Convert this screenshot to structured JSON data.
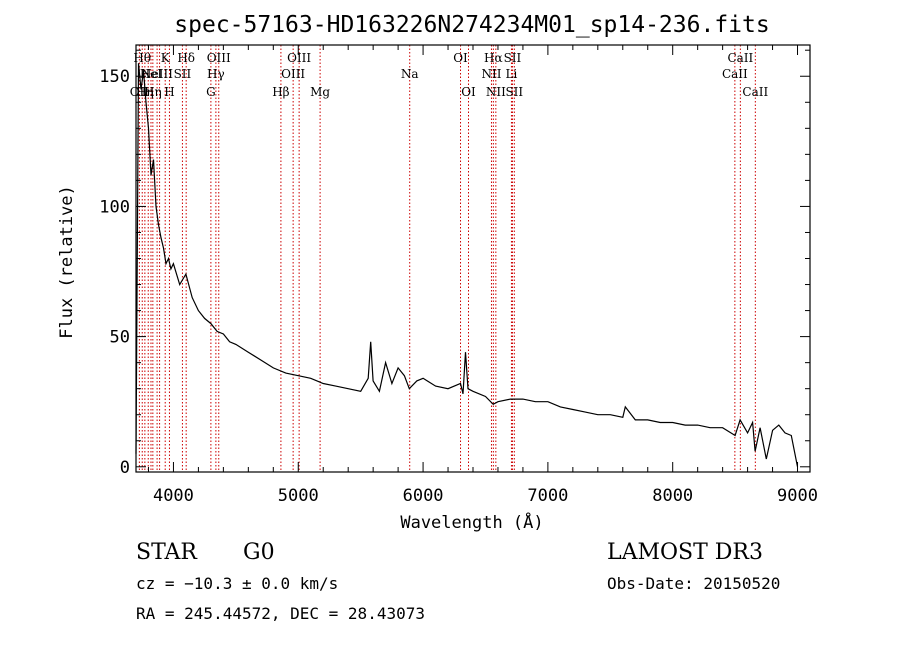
{
  "chart_data": {
    "type": "line",
    "title": "spec-57163-HD163226N274234M01_sp14-236.fits",
    "xlabel": "Wavelength (Å)",
    "ylabel": "Flux (relative)",
    "xlim": [
      3700,
      9100
    ],
    "ylim": [
      -2,
      162
    ],
    "x_ticks": [
      4000,
      5000,
      6000,
      7000,
      8000,
      9000
    ],
    "y_ticks": [
      0,
      50,
      100,
      150
    ],
    "line_color": "#000000",
    "marker_color": "#cc0000",
    "series": [
      {
        "name": "flux",
        "x": [
          3700,
          3720,
          3740,
          3760,
          3780,
          3800,
          3820,
          3840,
          3860,
          3880,
          3900,
          3920,
          3940,
          3960,
          3980,
          4000,
          4050,
          4100,
          4150,
          4200,
          4250,
          4300,
          4350,
          4400,
          4450,
          4500,
          4600,
          4700,
          4800,
          4900,
          5000,
          5100,
          5200,
          5300,
          5400,
          5500,
          5560,
          5580,
          5600,
          5650,
          5700,
          5750,
          5800,
          5850,
          5890,
          5950,
          6000,
          6100,
          6200,
          6300,
          6320,
          6340,
          6360,
          6400,
          6500,
          6562,
          6600,
          6700,
          6800,
          6900,
          7000,
          7100,
          7200,
          7300,
          7400,
          7500,
          7600,
          7620,
          7700,
          7800,
          7900,
          8000,
          8100,
          8200,
          8300,
          8400,
          8500,
          8540,
          8600,
          8640,
          8660,
          8700,
          8750,
          8800,
          8850,
          8900,
          8950,
          9000
        ],
        "y": [
          5,
          155,
          145,
          152,
          140,
          130,
          112,
          118,
          100,
          93,
          88,
          84,
          78,
          80,
          76,
          78,
          70,
          74,
          65,
          60,
          57,
          55,
          52,
          51,
          48,
          47,
          44,
          41,
          38,
          36,
          35,
          34,
          32,
          31,
          30,
          29,
          34,
          48,
          33,
          29,
          40,
          32,
          38,
          35,
          30,
          33,
          34,
          31,
          30,
          32,
          28,
          44,
          30,
          29,
          27,
          24,
          25,
          26,
          26,
          25,
          25,
          23,
          22,
          21,
          20,
          20,
          19,
          23,
          18,
          18,
          17,
          17,
          16,
          16,
          15,
          15,
          12,
          18,
          13,
          17,
          6,
          15,
          3,
          14,
          16,
          13,
          12,
          0
        ]
      }
    ],
    "line_markers": [
      {
        "wl": 3727,
        "label": "OII",
        "row": 3
      },
      {
        "wl": 3750,
        "label": "Hθ",
        "row": 1
      },
      {
        "wl": 3771,
        "label": "Hη",
        "row": 3
      },
      {
        "wl": 3798,
        "label": "",
        "row": 0
      },
      {
        "wl": 3820,
        "label": "HeI",
        "row": 2
      },
      {
        "wl": 3835,
        "label": "Hη",
        "row": 3
      },
      {
        "wl": 3869,
        "label": "NeIII",
        "row": 2
      },
      {
        "wl": 3889,
        "label": "",
        "row": 0
      },
      {
        "wl": 3934,
        "label": "K",
        "row": 1
      },
      {
        "wl": 3968,
        "label": "H",
        "row": 3
      },
      {
        "wl": 4072,
        "label": "SII",
        "row": 2
      },
      {
        "wl": 4102,
        "label": "Hδ",
        "row": 1
      },
      {
        "wl": 4300,
        "label": "G",
        "row": 3
      },
      {
        "wl": 4340,
        "label": "Hγ",
        "row": 2
      },
      {
        "wl": 4363,
        "label": "OIII",
        "row": 1
      },
      {
        "wl": 4861,
        "label": "Hβ",
        "row": 3
      },
      {
        "wl": 4959,
        "label": "OIII",
        "row": 2
      },
      {
        "wl": 5007,
        "label": "OIII",
        "row": 1
      },
      {
        "wl": 5175,
        "label": "Mg",
        "row": 3
      },
      {
        "wl": 5893,
        "label": "Na",
        "row": 2
      },
      {
        "wl": 6300,
        "label": "OI",
        "row": 1
      },
      {
        "wl": 6364,
        "label": "OI",
        "row": 3
      },
      {
        "wl": 6548,
        "label": "NII",
        "row": 2
      },
      {
        "wl": 6563,
        "label": "Hα",
        "row": 1
      },
      {
        "wl": 6583,
        "label": "NII",
        "row": 3
      },
      {
        "wl": 6708,
        "label": "Li",
        "row": 2
      },
      {
        "wl": 6716,
        "label": "SII",
        "row": 1
      },
      {
        "wl": 6731,
        "label": "SII",
        "row": 3
      },
      {
        "wl": 8498,
        "label": "CaII",
        "row": 2
      },
      {
        "wl": 8542,
        "label": "CaII",
        "row": 1
      },
      {
        "wl": 8662,
        "label": "CaII",
        "row": 3
      }
    ]
  },
  "info": {
    "class_label": "STAR",
    "subclass_label": "G0",
    "survey": "LAMOST DR3",
    "cz_text": "cz = −10.3 ± 0.0 km/s",
    "obs_date_text": "Obs-Date: 20150520",
    "radec_text": "RA = 245.44572, DEC =  28.43073"
  }
}
